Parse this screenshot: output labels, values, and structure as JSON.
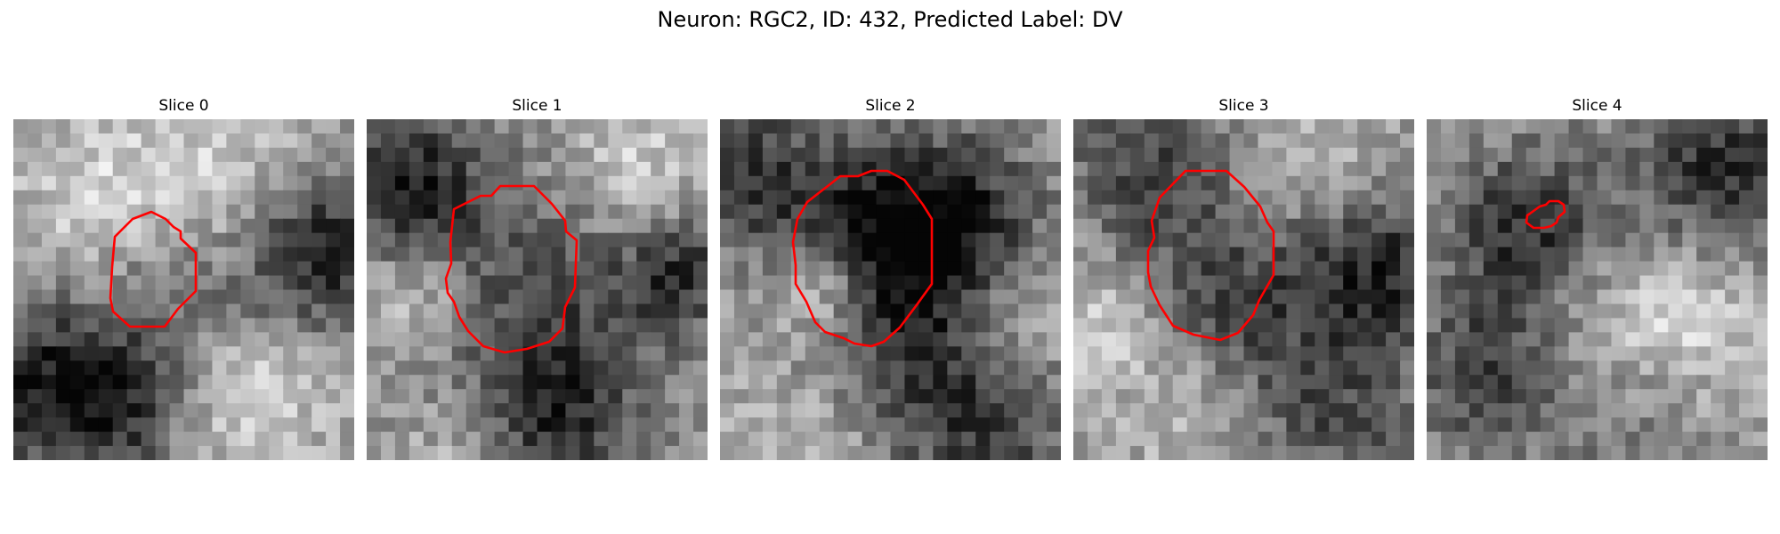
{
  "figure": {
    "title": "Neuron: RGC2, ID: 432, Predicted Label: DV",
    "contour_color": "#ff0000",
    "colormap": "gray"
  },
  "slices": [
    {
      "label": "Slice 0"
    },
    {
      "label": "Slice 1"
    },
    {
      "label": "Slice 2"
    },
    {
      "label": "Slice 3"
    },
    {
      "label": "Slice 4"
    }
  ]
}
